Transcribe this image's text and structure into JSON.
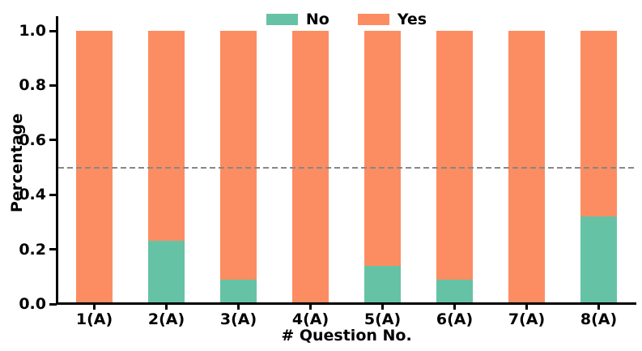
{
  "chart_data": {
    "type": "bar",
    "stacked": true,
    "title": "",
    "xlabel": "# Question No.",
    "ylabel": "Percentage",
    "categories": [
      "1(A)",
      "2(A)",
      "3(A)",
      "4(A)",
      "5(A)",
      "6(A)",
      "7(A)",
      "8(A)"
    ],
    "series": [
      {
        "name": "No",
        "color": "#66C2A5",
        "values": [
          0.0,
          0.23,
          0.09,
          0.0,
          0.14,
          0.09,
          0.0,
          0.32
        ]
      },
      {
        "name": "Yes",
        "color": "#FC8D62",
        "values": [
          1.0,
          0.77,
          0.91,
          1.0,
          0.86,
          0.91,
          1.0,
          0.68
        ]
      }
    ],
    "y_ticks": [
      "0.0",
      "0.2",
      "0.4",
      "0.6",
      "0.8",
      "1.0"
    ],
    "ylim": [
      0.0,
      1.0
    ],
    "reference_line": {
      "y": 0.5,
      "style": "dashed",
      "color": "#878787"
    },
    "legend": {
      "position": "top-center",
      "entries": [
        "No",
        "Yes"
      ]
    },
    "grid": "off"
  }
}
